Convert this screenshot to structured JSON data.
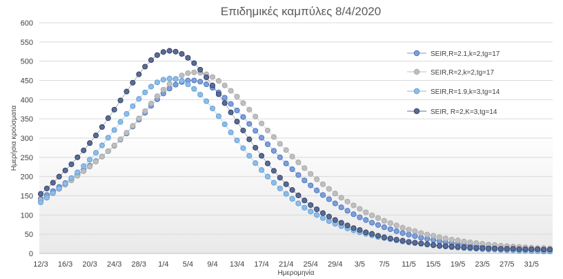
{
  "chart_data": {
    "type": "scatter",
    "title": "Επιδημικές καμπύλες 8/4/2020",
    "xlabel": "Ημερομηνία",
    "ylabel": "Ημερήσια κρούσματα",
    "ylim": [
      0,
      600
    ],
    "yticks": [
      0,
      50,
      100,
      150,
      200,
      250,
      300,
      350,
      400,
      450,
      500,
      550,
      600
    ],
    "x_start": "12/3",
    "x_end": "3/6",
    "x_tick_labels": [
      "12/3",
      "16/3",
      "20/3",
      "24/3",
      "28/3",
      "1/4",
      "5/4",
      "9/4",
      "13/4",
      "17/4",
      "21/4",
      "25/4",
      "29/4",
      "3/5",
      "7/5",
      "11/5",
      "15/5",
      "19/5",
      "23/5",
      "27/5",
      "31/5"
    ],
    "grid": true,
    "legend_position": "right",
    "series": [
      {
        "name": "SEIR,R=2.1,k=2,tg=17",
        "color": "#7f9fd6",
        "edge": "#4472c4",
        "values": [
          142,
          152,
          162,
          173,
          183,
          194,
          205,
          216,
          228,
          240,
          252,
          266,
          280,
          296,
          312,
          330,
          348,
          366,
          384,
          401,
          416,
          429,
          439,
          446,
          450,
          450,
          447,
          440,
          431,
          419,
          405,
          389,
          372,
          355,
          337,
          319,
          301,
          284,
          267,
          250,
          234,
          219,
          204,
          190,
          177,
          164,
          152,
          141,
          130,
          120,
          111,
          102,
          94,
          87,
          80,
          74,
          68,
          63,
          58,
          53,
          49,
          45,
          41,
          38,
          35,
          32,
          29,
          27,
          25,
          23,
          21,
          19,
          18,
          16,
          15,
          14,
          13,
          12,
          11,
          10,
          9,
          8,
          8,
          7
        ]
      },
      {
        "name": "SEIR,R=2,k=2,tg=17",
        "color": "#bfbfbf",
        "edge": "#a6a6a6",
        "values": [
          138,
          147,
          157,
          168,
          179,
          190,
          202,
          214,
          226,
          239,
          252,
          266,
          281,
          297,
          314,
          332,
          351,
          370,
          390,
          409,
          426,
          441,
          454,
          463,
          469,
          471,
          470,
          466,
          459,
          449,
          437,
          423,
          408,
          391,
          374,
          356,
          338,
          320,
          303,
          285,
          269,
          252,
          237,
          222,
          207,
          193,
          180,
          168,
          156,
          145,
          135,
          125,
          116,
          107,
          99,
          92,
          85,
          79,
          73,
          67,
          62,
          58,
          53,
          49,
          46,
          42,
          39,
          36,
          34,
          31,
          29,
          27,
          25,
          23,
          22,
          20,
          19,
          18,
          17,
          16,
          15,
          14,
          14,
          13
        ]
      },
      {
        "name": "SEIR,R=1.9,k=3,tg=14",
        "color": "#8fbce6",
        "edge": "#5b9bd5",
        "values": [
          133,
          145,
          157,
          169,
          182,
          196,
          211,
          227,
          244,
          262,
          281,
          301,
          321,
          342,
          363,
          383,
          402,
          419,
          434,
          445,
          452,
          455,
          454,
          449,
          440,
          428,
          413,
          396,
          377,
          357,
          336,
          315,
          294,
          274,
          254,
          235,
          217,
          200,
          184,
          169,
          155,
          142,
          130,
          119,
          109,
          100,
          92,
          84,
          77,
          71,
          65,
          60,
          55,
          51,
          47,
          43,
          40,
          37,
          34,
          31,
          29,
          27,
          25,
          23,
          21,
          19,
          18,
          16,
          15,
          14,
          13,
          12,
          11,
          10,
          10,
          9,
          8,
          8,
          7,
          7,
          6,
          6,
          5,
          5
        ]
      },
      {
        "name": "SEIR,  R=2,K=3,tg=14",
        "color": "#5a6b94",
        "edge": "#2f3d63",
        "values": [
          155,
          169,
          184,
          200,
          216,
          232,
          250,
          268,
          287,
          307,
          329,
          352,
          374,
          398,
          421,
          444,
          466,
          486,
          503,
          516,
          524,
          527,
          525,
          519,
          509,
          495,
          478,
          458,
          437,
          414,
          391,
          367,
          343,
          320,
          297,
          275,
          254,
          234,
          215,
          197,
          180,
          165,
          151,
          138,
          126,
          115,
          105,
          96,
          87,
          80,
          73,
          66,
          61,
          55,
          51,
          46,
          42,
          39,
          36,
          33,
          30,
          28,
          26,
          24,
          22,
          20,
          19,
          18,
          17,
          16,
          15,
          14,
          14,
          13,
          13,
          12,
          12,
          12,
          11,
          11,
          11,
          11,
          10,
          10
        ]
      }
    ]
  }
}
